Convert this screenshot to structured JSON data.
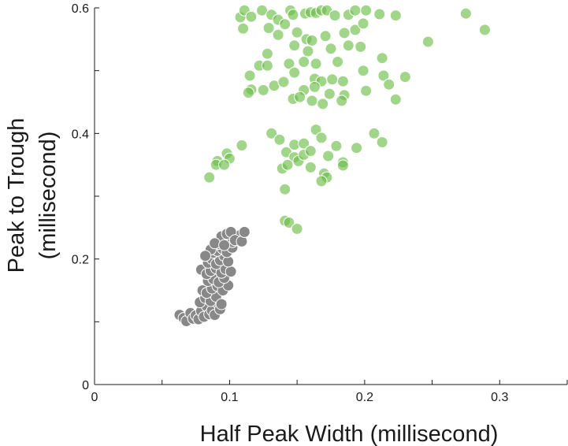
{
  "chart_data": {
    "type": "scatter",
    "title": "",
    "xlabel": "Half Peak Width (millisecond)",
    "ylabel_line1": "Peak to Trough",
    "ylabel_line2": "(millisecond)",
    "xlim": [
      0,
      0.35
    ],
    "ylim": [
      0,
      0.6
    ],
    "x_ticks": [
      0,
      0.05,
      0.1,
      0.15,
      0.2,
      0.25,
      0.3,
      0.35
    ],
    "x_tick_labels": [
      "0",
      "",
      "0.1",
      "",
      "0.2",
      "",
      "0.3",
      ""
    ],
    "y_ticks": [
      0,
      0.1,
      0.2,
      0.3,
      0.4,
      0.5,
      0.6
    ],
    "y_tick_labels": [
      "0",
      "",
      "0.2",
      "",
      "0.4",
      "",
      "0.6"
    ],
    "grid": false,
    "series": [
      {
        "color": "#6dbf4c",
        "points": [
          [
            0.108,
            0.585
          ],
          [
            0.111,
            0.596
          ],
          [
            0.116,
            0.586
          ],
          [
            0.124,
            0.596
          ],
          [
            0.131,
            0.589
          ],
          [
            0.136,
            0.581
          ],
          [
            0.141,
            0.574
          ],
          [
            0.145,
            0.596
          ],
          [
            0.147,
            0.589
          ],
          [
            0.156,
            0.591
          ],
          [
            0.16,
            0.593
          ],
          [
            0.164,
            0.592
          ],
          [
            0.168,
            0.596
          ],
          [
            0.172,
            0.596
          ],
          [
            0.178,
            0.588
          ],
          [
            0.188,
            0.589
          ],
          [
            0.193,
            0.596
          ],
          [
            0.201,
            0.596
          ],
          [
            0.211,
            0.59
          ],
          [
            0.223,
            0.588
          ],
          [
            0.275,
            0.591
          ],
          [
            0.289,
            0.565
          ],
          [
            0.247,
            0.546
          ],
          [
            0.11,
            0.567
          ],
          [
            0.129,
            0.568
          ],
          [
            0.136,
            0.557
          ],
          [
            0.15,
            0.561
          ],
          [
            0.157,
            0.55
          ],
          [
            0.161,
            0.548
          ],
          [
            0.171,
            0.555
          ],
          [
            0.185,
            0.56
          ],
          [
            0.193,
            0.565
          ],
          [
            0.199,
            0.575
          ],
          [
            0.128,
            0.527
          ],
          [
            0.148,
            0.54
          ],
          [
            0.158,
            0.531
          ],
          [
            0.175,
            0.535
          ],
          [
            0.188,
            0.54
          ],
          [
            0.197,
            0.538
          ],
          [
            0.213,
            0.52
          ],
          [
            0.122,
            0.508
          ],
          [
            0.128,
            0.508
          ],
          [
            0.144,
            0.511
          ],
          [
            0.155,
            0.514
          ],
          [
            0.164,
            0.511
          ],
          [
            0.18,
            0.514
          ],
          [
            0.199,
            0.5
          ],
          [
            0.214,
            0.492
          ],
          [
            0.23,
            0.49
          ],
          [
            0.115,
            0.492
          ],
          [
            0.148,
            0.497
          ],
          [
            0.163,
            0.487
          ],
          [
            0.168,
            0.483
          ],
          [
            0.176,
            0.486
          ],
          [
            0.184,
            0.483
          ],
          [
            0.218,
            0.478
          ],
          [
            0.116,
            0.47
          ],
          [
            0.125,
            0.469
          ],
          [
            0.133,
            0.476
          ],
          [
            0.14,
            0.482
          ],
          [
            0.155,
            0.469
          ],
          [
            0.163,
            0.474
          ],
          [
            0.174,
            0.463
          ],
          [
            0.185,
            0.461
          ],
          [
            0.201,
            0.468
          ],
          [
            0.114,
            0.465
          ],
          [
            0.147,
            0.455
          ],
          [
            0.152,
            0.458
          ],
          [
            0.161,
            0.452
          ],
          [
            0.169,
            0.447
          ],
          [
            0.183,
            0.452
          ],
          [
            0.223,
            0.454
          ],
          [
            0.131,
            0.4
          ],
          [
            0.137,
            0.39
          ],
          [
            0.148,
            0.382
          ],
          [
            0.155,
            0.384
          ],
          [
            0.164,
            0.406
          ],
          [
            0.168,
            0.393
          ],
          [
            0.179,
            0.38
          ],
          [
            0.207,
            0.4
          ],
          [
            0.213,
            0.386
          ],
          [
            0.142,
            0.37
          ],
          [
            0.148,
            0.362
          ],
          [
            0.151,
            0.356
          ],
          [
            0.155,
            0.366
          ],
          [
            0.16,
            0.372
          ],
          [
            0.173,
            0.364
          ],
          [
            0.184,
            0.354
          ],
          [
            0.194,
            0.377
          ],
          [
            0.139,
            0.344
          ],
          [
            0.143,
            0.35
          ],
          [
            0.16,
            0.346
          ],
          [
            0.17,
            0.336
          ],
          [
            0.172,
            0.33
          ],
          [
            0.184,
            0.349
          ],
          [
            0.168,
            0.324
          ],
          [
            0.109,
            0.381
          ],
          [
            0.098,
            0.368
          ],
          [
            0.1,
            0.36
          ],
          [
            0.091,
            0.356
          ],
          [
            0.09,
            0.35
          ],
          [
            0.096,
            0.35
          ],
          [
            0.085,
            0.33
          ],
          [
            0.141,
            0.311
          ],
          [
            0.141,
            0.261
          ],
          [
            0.144,
            0.258
          ],
          [
            0.15,
            0.248
          ]
        ]
      },
      {
        "color": "#888888",
        "points": [
          [
            0.063,
            0.111
          ],
          [
            0.066,
            0.106
          ],
          [
            0.068,
            0.101
          ],
          [
            0.071,
            0.114
          ],
          [
            0.073,
            0.105
          ],
          [
            0.075,
            0.11
          ],
          [
            0.077,
            0.104
          ],
          [
            0.079,
            0.117
          ],
          [
            0.081,
            0.108
          ],
          [
            0.083,
            0.125
          ],
          [
            0.085,
            0.112
          ],
          [
            0.087,
            0.118
          ],
          [
            0.089,
            0.111
          ],
          [
            0.091,
            0.13
          ],
          [
            0.093,
            0.12
          ],
          [
            0.078,
            0.131
          ],
          [
            0.082,
            0.138
          ],
          [
            0.086,
            0.133
          ],
          [
            0.09,
            0.14
          ],
          [
            0.094,
            0.128
          ],
          [
            0.08,
            0.15
          ],
          [
            0.083,
            0.146
          ],
          [
            0.087,
            0.153
          ],
          [
            0.091,
            0.157
          ],
          [
            0.095,
            0.15
          ],
          [
            0.099,
            0.158
          ],
          [
            0.084,
            0.165
          ],
          [
            0.088,
            0.168
          ],
          [
            0.092,
            0.163
          ],
          [
            0.096,
            0.17
          ],
          [
            0.079,
            0.183
          ],
          [
            0.083,
            0.176
          ],
          [
            0.086,
            0.181
          ],
          [
            0.09,
            0.185
          ],
          [
            0.094,
            0.178
          ],
          [
            0.097,
            0.184
          ],
          [
            0.101,
            0.18
          ],
          [
            0.084,
            0.194
          ],
          [
            0.087,
            0.2
          ],
          [
            0.09,
            0.192
          ],
          [
            0.093,
            0.198
          ],
          [
            0.096,
            0.205
          ],
          [
            0.099,
            0.196
          ],
          [
            0.088,
            0.21
          ],
          [
            0.091,
            0.213
          ],
          [
            0.095,
            0.216
          ],
          [
            0.098,
            0.211
          ],
          [
            0.102,
            0.218
          ],
          [
            0.092,
            0.224
          ],
          [
            0.095,
            0.228
          ],
          [
            0.099,
            0.231
          ],
          [
            0.102,
            0.227
          ],
          [
            0.105,
            0.235
          ],
          [
            0.108,
            0.238
          ],
          [
            0.094,
            0.236
          ],
          [
            0.098,
            0.24
          ],
          [
            0.101,
            0.243
          ],
          [
            0.104,
            0.23
          ],
          [
            0.109,
            0.228
          ],
          [
            0.111,
            0.243
          ],
          [
            0.086,
            0.215
          ],
          [
            0.082,
            0.205
          ],
          [
            0.089,
            0.225
          ],
          [
            0.096,
            0.222
          ]
        ]
      }
    ]
  }
}
